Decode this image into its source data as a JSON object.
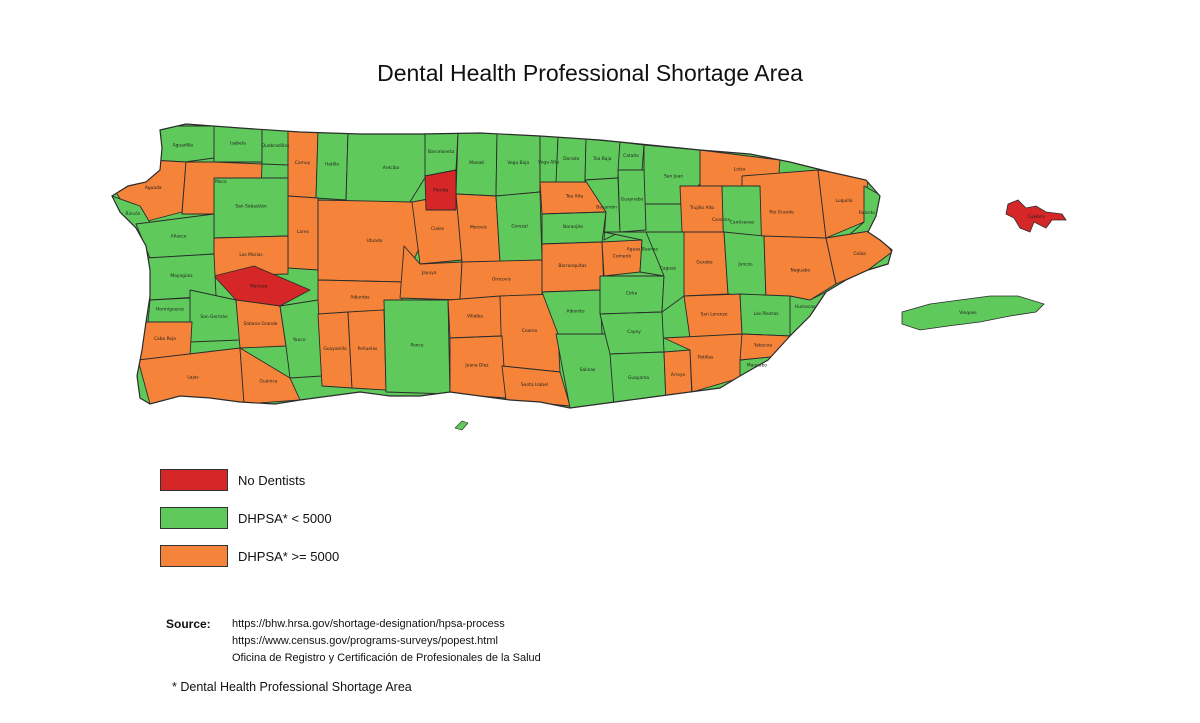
{
  "title": "Dental Health Professional Shortage Area",
  "colors": {
    "no_dentists": "#d62728",
    "under_5000": "#5fc95b",
    "over_5000": "#f5843a",
    "border": "#2b2b2b"
  },
  "legend": [
    {
      "key": "no_dentists",
      "label": "No Dentists"
    },
    {
      "key": "under_5000",
      "label": "DHPSA* < 5000"
    },
    {
      "key": "over_5000",
      "label": "DHPSA* >= 5000"
    }
  ],
  "source": {
    "label": "Source:",
    "lines": [
      "https://bhw.hrsa.gov/shortage-designation/hpsa-process",
      "https://www.census.gov/programs-surveys/popest.html",
      "Oficina de Registro y Certificación de Profesionales de la Salud"
    ]
  },
  "footnote": "* Dental Health Professional Shortage Area",
  "municipalities": [
    {
      "name": "Aguadilla",
      "category": "under_5000"
    },
    {
      "name": "Isabela",
      "category": "under_5000"
    },
    {
      "name": "Quebradillas",
      "category": "under_5000"
    },
    {
      "name": "Camuy",
      "category": "over_5000"
    },
    {
      "name": "Hatillo",
      "category": "under_5000"
    },
    {
      "name": "Arecibo",
      "category": "under_5000"
    },
    {
      "name": "Barceloneta",
      "category": "under_5000"
    },
    {
      "name": "Manatí",
      "category": "under_5000"
    },
    {
      "name": "Vega Baja",
      "category": "under_5000"
    },
    {
      "name": "Vega Alta",
      "category": "under_5000"
    },
    {
      "name": "Dorado",
      "category": "under_5000"
    },
    {
      "name": "Toa Baja",
      "category": "under_5000"
    },
    {
      "name": "Cataño",
      "category": "under_5000"
    },
    {
      "name": "San Juan",
      "category": "under_5000"
    },
    {
      "name": "Loíza",
      "category": "over_5000"
    },
    {
      "name": "Carolina",
      "category": "under_5000"
    },
    {
      "name": "Río Grande",
      "category": "over_5000"
    },
    {
      "name": "Luquillo",
      "category": "over_5000"
    },
    {
      "name": "Fajardo",
      "category": "under_5000"
    },
    {
      "name": "Aguada",
      "category": "over_5000"
    },
    {
      "name": "Moca",
      "category": "over_5000"
    },
    {
      "name": "San Sebastián",
      "category": "under_5000"
    },
    {
      "name": "Lares",
      "category": "over_5000"
    },
    {
      "name": "Utuado",
      "category": "over_5000"
    },
    {
      "name": "Ciales",
      "category": "over_5000"
    },
    {
      "name": "Florida",
      "category": "no_dentists"
    },
    {
      "name": "Morovis",
      "category": "over_5000"
    },
    {
      "name": "Corozal",
      "category": "under_5000"
    },
    {
      "name": "Toa Alta",
      "category": "over_5000"
    },
    {
      "name": "Naranjito",
      "category": "under_5000"
    },
    {
      "name": "Bayamón",
      "category": "under_5000"
    },
    {
      "name": "Guaynabo",
      "category": "under_5000"
    },
    {
      "name": "Trujillo Alto",
      "category": "over_5000"
    },
    {
      "name": "Canóvanas",
      "category": "under_5000"
    },
    {
      "name": "Rincón",
      "category": "under_5000"
    },
    {
      "name": "Añasco",
      "category": "under_5000"
    },
    {
      "name": "Las Marías",
      "category": "over_5000"
    },
    {
      "name": "Maricao",
      "category": "no_dentists"
    },
    {
      "name": "Adjuntas",
      "category": "over_5000"
    },
    {
      "name": "Jayuya",
      "category": "over_5000"
    },
    {
      "name": "Orocovis",
      "category": "over_5000"
    },
    {
      "name": "Barranquitas",
      "category": "over_5000"
    },
    {
      "name": "Comerío",
      "category": "over_5000"
    },
    {
      "name": "Aguas Buenas",
      "category": "under_5000"
    },
    {
      "name": "Gurabo",
      "category": "over_5000"
    },
    {
      "name": "Juncos",
      "category": "under_5000"
    },
    {
      "name": "Naguabo",
      "category": "over_5000"
    },
    {
      "name": "Ceiba",
      "category": "over_5000"
    },
    {
      "name": "Mayagüez",
      "category": "under_5000"
    },
    {
      "name": "Hormigueros",
      "category": "under_5000"
    },
    {
      "name": "San Germán",
      "category": "under_5000"
    },
    {
      "name": "Sabana Grande",
      "category": "over_5000"
    },
    {
      "name": "Yauco",
      "category": "under_5000"
    },
    {
      "name": "Guayanilla",
      "category": "over_5000"
    },
    {
      "name": "Peñuelas",
      "category": "over_5000"
    },
    {
      "name": "Ponce",
      "category": "under_5000"
    },
    {
      "name": "Villalba",
      "category": "over_5000"
    },
    {
      "name": "Coamo",
      "category": "over_5000"
    },
    {
      "name": "Aibonito",
      "category": "under_5000"
    },
    {
      "name": "Cidra",
      "category": "under_5000"
    },
    {
      "name": "Caguas",
      "category": "under_5000"
    },
    {
      "name": "San Lorenzo",
      "category": "over_5000"
    },
    {
      "name": "Las Piedras",
      "category": "under_5000"
    },
    {
      "name": "Humacao",
      "category": "under_5000"
    },
    {
      "name": "Cabo Rojo",
      "category": "over_5000"
    },
    {
      "name": "Lajas",
      "category": "over_5000"
    },
    {
      "name": "Guánica",
      "category": "over_5000"
    },
    {
      "name": "Juana Díaz",
      "category": "over_5000"
    },
    {
      "name": "Santa Isabel",
      "category": "over_5000"
    },
    {
      "name": "Salinas",
      "category": "under_5000"
    },
    {
      "name": "Cayey",
      "category": "under_5000"
    },
    {
      "name": "Guayama",
      "category": "under_5000"
    },
    {
      "name": "Arroyo",
      "category": "over_5000"
    },
    {
      "name": "Patillas",
      "category": "over_5000"
    },
    {
      "name": "Maunabo",
      "category": "under_5000"
    },
    {
      "name": "Yabucoa",
      "category": "over_5000"
    },
    {
      "name": "Culebra",
      "category": "no_dentists"
    },
    {
      "name": "Vieques",
      "category": "under_5000"
    }
  ]
}
